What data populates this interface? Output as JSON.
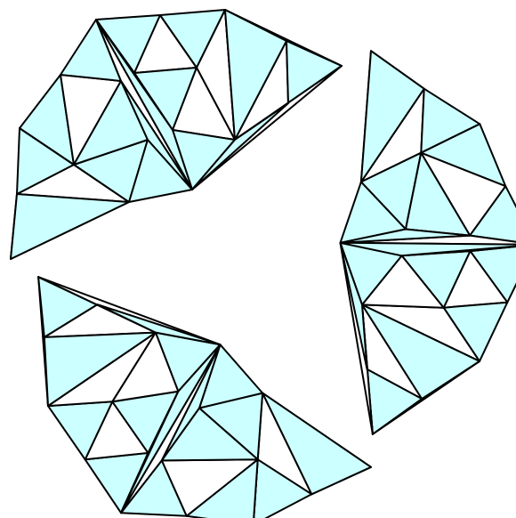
{
  "figure": {
    "kind": "triangulated-tiling",
    "fill_colors": {
      "shaded": "#ccffff",
      "unshaded": "#ffffff"
    },
    "stroke_color": "#000000",
    "shaded_triangle_count": 63,
    "unshaded_triangle_count": 27
  }
}
